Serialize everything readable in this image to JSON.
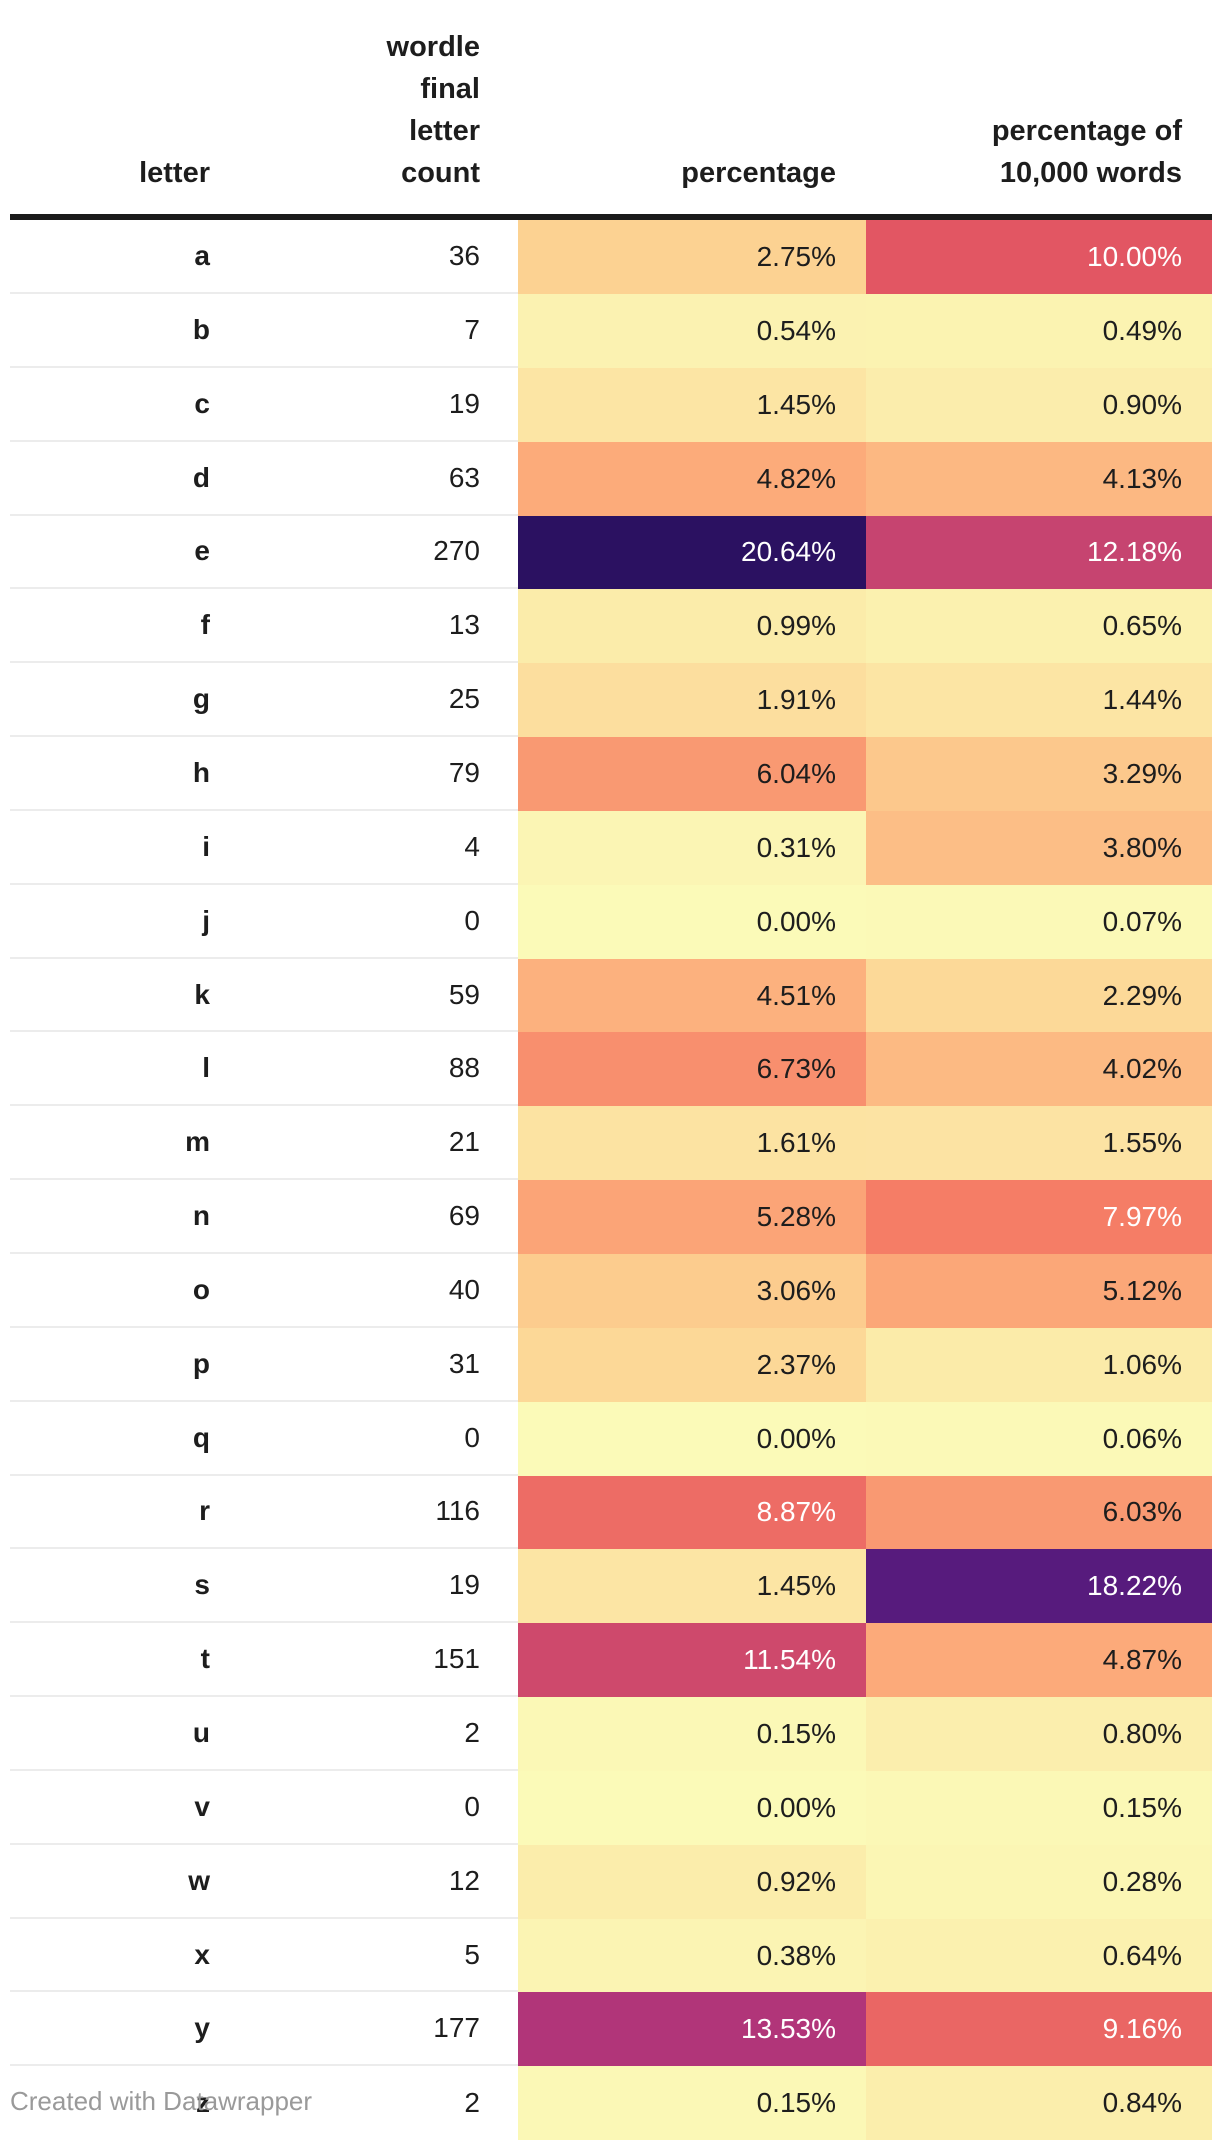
{
  "table": {
    "columns": [
      {
        "label": "letter"
      },
      {
        "label": "wordle final\nletter count"
      },
      {
        "label": "percentage"
      },
      {
        "label": "percentage of\n10,000 words"
      }
    ],
    "rows": [
      {
        "letter": "a",
        "count": "36",
        "pct": "2.75%",
        "pct_value": 2.75,
        "pct10k": "10.00%",
        "pct10k_value": 10.0
      },
      {
        "letter": "b",
        "count": "7",
        "pct": "0.54%",
        "pct_value": 0.54,
        "pct10k": "0.49%",
        "pct10k_value": 0.49
      },
      {
        "letter": "c",
        "count": "19",
        "pct": "1.45%",
        "pct_value": 1.45,
        "pct10k": "0.90%",
        "pct10k_value": 0.9
      },
      {
        "letter": "d",
        "count": "63",
        "pct": "4.82%",
        "pct_value": 4.82,
        "pct10k": "4.13%",
        "pct10k_value": 4.13
      },
      {
        "letter": "e",
        "count": "270",
        "pct": "20.64%",
        "pct_value": 20.64,
        "pct10k": "12.18%",
        "pct10k_value": 12.18
      },
      {
        "letter": "f",
        "count": "13",
        "pct": "0.99%",
        "pct_value": 0.99,
        "pct10k": "0.65%",
        "pct10k_value": 0.65
      },
      {
        "letter": "g",
        "count": "25",
        "pct": "1.91%",
        "pct_value": 1.91,
        "pct10k": "1.44%",
        "pct10k_value": 1.44
      },
      {
        "letter": "h",
        "count": "79",
        "pct": "6.04%",
        "pct_value": 6.04,
        "pct10k": "3.29%",
        "pct10k_value": 3.29
      },
      {
        "letter": "i",
        "count": "4",
        "pct": "0.31%",
        "pct_value": 0.31,
        "pct10k": "3.80%",
        "pct10k_value": 3.8
      },
      {
        "letter": "j",
        "count": "0",
        "pct": "0.00%",
        "pct_value": 0.0,
        "pct10k": "0.07%",
        "pct10k_value": 0.07
      },
      {
        "letter": "k",
        "count": "59",
        "pct": "4.51%",
        "pct_value": 4.51,
        "pct10k": "2.29%",
        "pct10k_value": 2.29
      },
      {
        "letter": "l",
        "count": "88",
        "pct": "6.73%",
        "pct_value": 6.73,
        "pct10k": "4.02%",
        "pct10k_value": 4.02
      },
      {
        "letter": "m",
        "count": "21",
        "pct": "1.61%",
        "pct_value": 1.61,
        "pct10k": "1.55%",
        "pct10k_value": 1.55
      },
      {
        "letter": "n",
        "count": "69",
        "pct": "5.28%",
        "pct_value": 5.28,
        "pct10k": "7.97%",
        "pct10k_value": 7.97
      },
      {
        "letter": "o",
        "count": "40",
        "pct": "3.06%",
        "pct_value": 3.06,
        "pct10k": "5.12%",
        "pct10k_value": 5.12
      },
      {
        "letter": "p",
        "count": "31",
        "pct": "2.37%",
        "pct_value": 2.37,
        "pct10k": "1.06%",
        "pct10k_value": 1.06
      },
      {
        "letter": "q",
        "count": "0",
        "pct": "0.00%",
        "pct_value": 0.0,
        "pct10k": "0.06%",
        "pct10k_value": 0.06
      },
      {
        "letter": "r",
        "count": "116",
        "pct": "8.87%",
        "pct_value": 8.87,
        "pct10k": "6.03%",
        "pct10k_value": 6.03
      },
      {
        "letter": "s",
        "count": "19",
        "pct": "1.45%",
        "pct_value": 1.45,
        "pct10k": "18.22%",
        "pct10k_value": 18.22
      },
      {
        "letter": "t",
        "count": "151",
        "pct": "11.54%",
        "pct_value": 11.54,
        "pct10k": "4.87%",
        "pct10k_value": 4.87
      },
      {
        "letter": "u",
        "count": "2",
        "pct": "0.15%",
        "pct_value": 0.15,
        "pct10k": "0.80%",
        "pct10k_value": 0.8
      },
      {
        "letter": "v",
        "count": "0",
        "pct": "0.00%",
        "pct_value": 0.0,
        "pct10k": "0.15%",
        "pct10k_value": 0.15
      },
      {
        "letter": "w",
        "count": "12",
        "pct": "0.92%",
        "pct_value": 0.92,
        "pct10k": "0.28%",
        "pct10k_value": 0.28
      },
      {
        "letter": "x",
        "count": "5",
        "pct": "0.38%",
        "pct_value": 0.38,
        "pct10k": "0.64%",
        "pct10k_value": 0.64
      },
      {
        "letter": "y",
        "count": "177",
        "pct": "13.53%",
        "pct_value": 13.53,
        "pct10k": "9.16%",
        "pct10k_value": 9.16
      },
      {
        "letter": "z",
        "count": "2",
        "pct": "0.15%",
        "pct_value": 0.15,
        "pct10k": "0.84%",
        "pct10k_value": 0.84
      }
    ]
  },
  "heatmap": {
    "stops": [
      {
        "v": 0.0,
        "c": "#fbfab8"
      },
      {
        "v": 2.75,
        "c": "#fcd292"
      },
      {
        "v": 4.82,
        "c": "#fcab7a"
      },
      {
        "v": 7.97,
        "c": "#f57d66"
      },
      {
        "v": 10.0,
        "c": "#e25663"
      },
      {
        "v": 12.18,
        "c": "#c64470"
      },
      {
        "v": 13.53,
        "c": "#b13579"
      },
      {
        "v": 18.22,
        "c": "#571b7d"
      },
      {
        "v": 20.64,
        "c": "#2b1161"
      }
    ],
    "white_text_threshold": 7.5,
    "dark_text_color": "#1d1d1d",
    "white_text_color": "#ffffff"
  },
  "footer": {
    "credit": "Created with Datawrapper"
  },
  "colors": {
    "header_rule": "#1a1a1a",
    "row_divider": "#ececec",
    "body_text": "#1d1d1d",
    "footer_text": "#9a9a9a",
    "background": "#ffffff"
  },
  "chart_data": {
    "type": "table",
    "title": "",
    "columns": [
      "letter",
      "wordle final letter count",
      "percentage",
      "percentage of 10,000 words"
    ],
    "rows": [
      [
        "a",
        36,
        2.75,
        10.0
      ],
      [
        "b",
        7,
        0.54,
        0.49
      ],
      [
        "c",
        19,
        1.45,
        0.9
      ],
      [
        "d",
        63,
        4.82,
        4.13
      ],
      [
        "e",
        270,
        20.64,
        12.18
      ],
      [
        "f",
        13,
        0.99,
        0.65
      ],
      [
        "g",
        25,
        1.91,
        1.44
      ],
      [
        "h",
        79,
        6.04,
        3.29
      ],
      [
        "i",
        4,
        0.31,
        3.8
      ],
      [
        "j",
        0,
        0.0,
        0.07
      ],
      [
        "k",
        59,
        4.51,
        2.29
      ],
      [
        "l",
        88,
        6.73,
        4.02
      ],
      [
        "m",
        21,
        1.61,
        1.55
      ],
      [
        "n",
        69,
        5.28,
        7.97
      ],
      [
        "o",
        40,
        3.06,
        5.12
      ],
      [
        "p",
        31,
        2.37,
        1.06
      ],
      [
        "q",
        0,
        0.0,
        0.06
      ],
      [
        "r",
        116,
        8.87,
        6.03
      ],
      [
        "s",
        19,
        1.45,
        18.22
      ],
      [
        "t",
        151,
        11.54,
        4.87
      ],
      [
        "u",
        2,
        0.15,
        0.8
      ],
      [
        "v",
        0,
        0.0,
        0.15
      ],
      [
        "w",
        12,
        0.92,
        0.28
      ],
      [
        "x",
        5,
        0.38,
        0.64
      ],
      [
        "y",
        177,
        13.53,
        9.16
      ],
      [
        "z",
        2,
        0.15,
        0.84
      ]
    ],
    "heatmap_columns": [
      "percentage",
      "percentage of 10,000 words"
    ],
    "scale": {
      "min": 0,
      "max": 20.64,
      "palette": "pale-yellow to orange to red to magenta to dark-purple"
    }
  }
}
